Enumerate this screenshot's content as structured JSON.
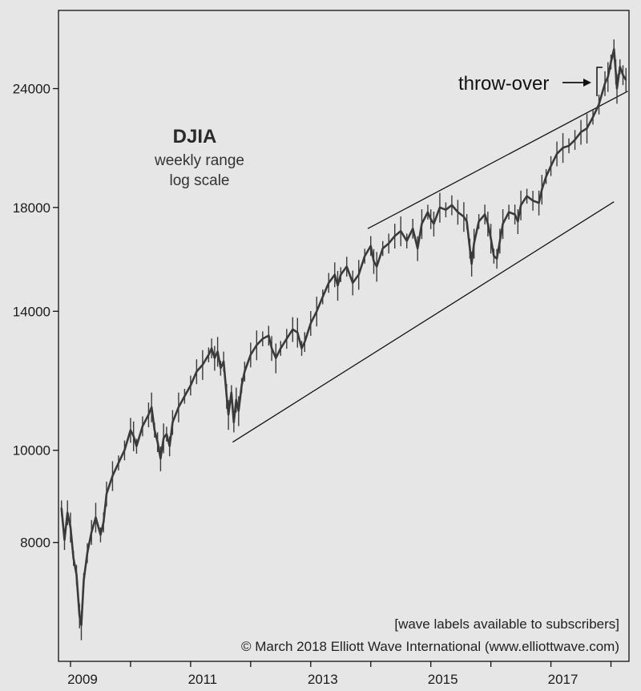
{
  "chart_data": {
    "type": "line",
    "title": "DJIA",
    "subtitle_lines": [
      "weekly range",
      "log scale"
    ],
    "scale": "log",
    "ylim": [
      6000,
      29000
    ],
    "xlim": [
      2008.8,
      2018.3
    ],
    "y_ticks": [
      8000,
      10000,
      14000,
      18000,
      24000
    ],
    "y_tick_labels": [
      "8000",
      "10000",
      "14000",
      "18000",
      "24000"
    ],
    "x_tick_labels": [
      "2009",
      "2011",
      "2013",
      "2015",
      "2017"
    ],
    "x_tick_label_positions": [
      2009.2,
      2011.2,
      2013.2,
      2015.2,
      2017.2
    ],
    "x_minor_ticks": [
      2009,
      2010,
      2011,
      2012,
      2013,
      2014,
      2015,
      2016,
      2017,
      2018
    ],
    "grid": false,
    "series": [
      {
        "name": "DJIA",
        "points": [
          [
            2008.85,
            8700
          ],
          [
            2008.9,
            8050
          ],
          [
            2008.95,
            8600
          ],
          [
            2009.0,
            8300
          ],
          [
            2009.05,
            7700
          ],
          [
            2009.1,
            7400
          ],
          [
            2009.15,
            6700
          ],
          [
            2009.18,
            6550
          ],
          [
            2009.22,
            7300
          ],
          [
            2009.28,
            7800
          ],
          [
            2009.35,
            8200
          ],
          [
            2009.42,
            8500
          ],
          [
            2009.5,
            8150
          ],
          [
            2009.55,
            8400
          ],
          [
            2009.6,
            9000
          ],
          [
            2009.7,
            9400
          ],
          [
            2009.8,
            9700
          ],
          [
            2009.9,
            10000
          ],
          [
            2010.0,
            10500
          ],
          [
            2010.05,
            10350
          ],
          [
            2010.1,
            10100
          ],
          [
            2010.2,
            10600
          ],
          [
            2010.3,
            10900
          ],
          [
            2010.35,
            11100
          ],
          [
            2010.4,
            10500
          ],
          [
            2010.45,
            10200
          ],
          [
            2010.5,
            9800
          ],
          [
            2010.55,
            10300
          ],
          [
            2010.6,
            10400
          ],
          [
            2010.65,
            10100
          ],
          [
            2010.7,
            10700
          ],
          [
            2010.8,
            11100
          ],
          [
            2010.9,
            11400
          ],
          [
            2011.0,
            11700
          ],
          [
            2011.1,
            12100
          ],
          [
            2011.2,
            12300
          ],
          [
            2011.3,
            12600
          ],
          [
            2011.35,
            12800
          ],
          [
            2011.4,
            12500
          ],
          [
            2011.45,
            12700
          ],
          [
            2011.5,
            12200
          ],
          [
            2011.55,
            12400
          ],
          [
            2011.6,
            11400
          ],
          [
            2011.63,
            10900
          ],
          [
            2011.68,
            11500
          ],
          [
            2011.72,
            10700
          ],
          [
            2011.76,
            11300
          ],
          [
            2011.8,
            11000
          ],
          [
            2011.85,
            11700
          ],
          [
            2011.9,
            12100
          ],
          [
            2012.0,
            12600
          ],
          [
            2012.1,
            12900
          ],
          [
            2012.2,
            13100
          ],
          [
            2012.3,
            13200
          ],
          [
            2012.35,
            12800
          ],
          [
            2012.42,
            12500
          ],
          [
            2012.5,
            12800
          ],
          [
            2012.6,
            13100
          ],
          [
            2012.7,
            13400
          ],
          [
            2012.78,
            13300
          ],
          [
            2012.85,
            12800
          ],
          [
            2012.9,
            13000
          ],
          [
            2013.0,
            13600
          ],
          [
            2013.1,
            14000
          ],
          [
            2013.2,
            14500
          ],
          [
            2013.3,
            15000
          ],
          [
            2013.4,
            15300
          ],
          [
            2013.45,
            14900
          ],
          [
            2013.5,
            15300
          ],
          [
            2013.6,
            15600
          ],
          [
            2013.7,
            15000
          ],
          [
            2013.8,
            15300
          ],
          [
            2013.9,
            16000
          ],
          [
            2014.0,
            16400
          ],
          [
            2014.05,
            15800
          ],
          [
            2014.1,
            15600
          ],
          [
            2014.2,
            16300
          ],
          [
            2014.3,
            16500
          ],
          [
            2014.4,
            16800
          ],
          [
            2014.5,
            17000
          ],
          [
            2014.6,
            16600
          ],
          [
            2014.7,
            17100
          ],
          [
            2014.78,
            16300
          ],
          [
            2014.85,
            17300
          ],
          [
            2014.95,
            17800
          ],
          [
            2015.0,
            17500
          ],
          [
            2015.05,
            17300
          ],
          [
            2015.15,
            18000
          ],
          [
            2015.25,
            17900
          ],
          [
            2015.35,
            18100
          ],
          [
            2015.45,
            17800
          ],
          [
            2015.55,
            17600
          ],
          [
            2015.6,
            17400
          ],
          [
            2015.65,
            16300
          ],
          [
            2015.68,
            15700
          ],
          [
            2015.72,
            16500
          ],
          [
            2015.8,
            17400
          ],
          [
            2015.9,
            17700
          ],
          [
            2015.95,
            17300
          ],
          [
            2016.0,
            16700
          ],
          [
            2016.05,
            16000
          ],
          [
            2016.1,
            15900
          ],
          [
            2016.15,
            16600
          ],
          [
            2016.2,
            17300
          ],
          [
            2016.3,
            17800
          ],
          [
            2016.4,
            17700
          ],
          [
            2016.45,
            17400
          ],
          [
            2016.5,
            18100
          ],
          [
            2016.6,
            18500
          ],
          [
            2016.7,
            18300
          ],
          [
            2016.8,
            18200
          ],
          [
            2016.85,
            18800
          ],
          [
            2016.92,
            19400
          ],
          [
            2017.0,
            19900
          ],
          [
            2017.1,
            20500
          ],
          [
            2017.2,
            20800
          ],
          [
            2017.3,
            20900
          ],
          [
            2017.4,
            21200
          ],
          [
            2017.5,
            21600
          ],
          [
            2017.6,
            21800
          ],
          [
            2017.7,
            22400
          ],
          [
            2017.8,
            23100
          ],
          [
            2017.9,
            24300
          ],
          [
            2017.95,
            24700
          ],
          [
            2018.0,
            25600
          ],
          [
            2018.05,
            26400
          ],
          [
            2018.08,
            25000
          ],
          [
            2018.1,
            24000
          ],
          [
            2018.15,
            25300
          ],
          [
            2018.2,
            24800
          ],
          [
            2018.25,
            24500
          ]
        ]
      }
    ],
    "trendlines": [
      {
        "name": "upper-channel-line",
        "from": [
          2013.95,
          17100
        ],
        "to": [
          2018.28,
          23850
        ]
      },
      {
        "name": "lower-channel-line",
        "from": [
          2011.7,
          10200
        ],
        "to": [
          2018.05,
          18250
        ]
      }
    ],
    "annotations": [
      {
        "text": "throw-over",
        "arrow_to": [
          2018.0,
          26000
        ]
      }
    ],
    "footer_lines": [
      "[wave labels available to subscribers]",
      "© March 2018 Elliott Wave International (www.elliottwave.com)"
    ]
  }
}
